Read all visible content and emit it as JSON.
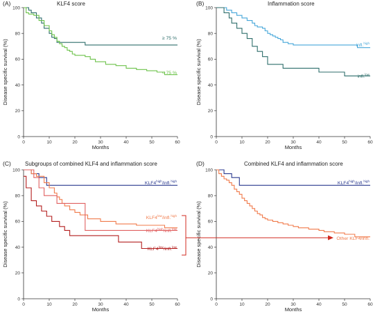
{
  "chart_data": [
    {
      "type": "line",
      "step": true,
      "panel_letter": "(A)",
      "title": "KLF4 score",
      "xlabel": "Months",
      "ylabel": "Disease specific survival (%)",
      "xlim": [
        0,
        60
      ],
      "ylim": [
        0,
        100
      ],
      "xticks": [
        "0",
        "10",
        "20",
        "30",
        "40",
        "50",
        "60"
      ],
      "yticks": [
        "0",
        "20",
        "40",
        "60",
        "80",
        "100"
      ],
      "series": [
        {
          "name": "≥ 75 %",
          "color": "#2e6e6b",
          "x": [
            0,
            2,
            3,
            5,
            7,
            8,
            10,
            11,
            12,
            13,
            24,
            60
          ],
          "y": [
            100,
            98,
            96,
            92,
            88,
            84,
            80,
            77,
            76,
            73,
            71,
            71
          ]
        },
        {
          "name": "< 75 %",
          "color": "#6cc24a",
          "x": [
            0,
            1,
            2,
            4,
            6,
            8,
            10,
            11,
            12,
            13,
            14,
            15,
            16,
            17,
            18,
            19,
            20,
            24,
            26,
            28,
            32,
            36,
            40,
            44,
            48,
            52,
            55,
            60
          ],
          "y": [
            100,
            96,
            95,
            94,
            90,
            86,
            82,
            79,
            77,
            74,
            72,
            70,
            69,
            67,
            66,
            64,
            63,
            62,
            60,
            58,
            56,
            55,
            53,
            52,
            51,
            50,
            48,
            48
          ]
        }
      ]
    },
    {
      "type": "line",
      "step": true,
      "panel_letter": "(B)",
      "title": "Inflammation score",
      "xlabel": "Months",
      "ylabel": "Disease specific survival (%)",
      "xlim": [
        0,
        60
      ],
      "ylim": [
        0,
        100
      ],
      "xticks": [
        "0",
        "10",
        "20",
        "30",
        "40",
        "50",
        "60"
      ],
      "yticks": [
        "0",
        "20",
        "40",
        "60",
        "80",
        "100"
      ],
      "series": [
        {
          "name": "infl.",
          "name_sup": "high",
          "color": "#45a6d9",
          "x": [
            0,
            4,
            6,
            8,
            10,
            12,
            14,
            15,
            16,
            18,
            19,
            20,
            21,
            22,
            23,
            24,
            25,
            26,
            28,
            30,
            55,
            60
          ],
          "y": [
            100,
            98,
            96,
            94,
            92,
            90,
            88,
            86,
            85,
            84,
            82,
            80,
            79,
            78,
            77,
            76,
            75,
            73,
            72,
            71,
            69,
            69
          ]
        },
        {
          "name": "infl.",
          "name_sup": "low",
          "color": "#2e6e6b",
          "x": [
            0,
            3,
            5,
            6,
            8,
            10,
            12,
            14,
            16,
            18,
            20,
            26,
            40,
            50,
            60
          ],
          "y": [
            100,
            96,
            92,
            88,
            84,
            80,
            76,
            70,
            66,
            62,
            56,
            53,
            50,
            47,
            47
          ]
        }
      ]
    },
    {
      "type": "line",
      "step": true,
      "panel_letter": "(C)",
      "title": "Subgroups of combined KLF4 and inflammation score",
      "xlabel": "Months",
      "ylabel": "Disease specific survival (%)",
      "xlim": [
        0,
        60
      ],
      "ylim": [
        0,
        100
      ],
      "xticks": [
        "0",
        "10",
        "20",
        "30",
        "40",
        "50",
        "60"
      ],
      "yticks": [
        "0",
        "20",
        "40",
        "60",
        "80",
        "100"
      ],
      "series": [
        {
          "name": "KLF4",
          "name_sup": "high",
          "name_mid": "/infl.",
          "name_sup2": "high",
          "color": "#2b3a8f",
          "x": [
            0,
            3,
            6,
            9,
            60
          ],
          "y": [
            100,
            97,
            94,
            88,
            88
          ]
        },
        {
          "name": "KLF4",
          "name_sup": "low",
          "name_mid": "/infl.",
          "name_sup2": "high",
          "color": "#f07a4a",
          "x": [
            0,
            3,
            5,
            8,
            10,
            12,
            13,
            14,
            15,
            16,
            18,
            20,
            22,
            25,
            30,
            36,
            44,
            55,
            60
          ],
          "y": [
            100,
            97,
            95,
            90,
            86,
            82,
            79,
            77,
            74,
            72,
            69,
            67,
            65,
            62,
            60,
            58,
            57,
            55,
            55
          ]
        },
        {
          "name": "KLF4",
          "name_sup": "high",
          "name_mid": "/infl.",
          "name_sup2": "low",
          "color": "#e06060",
          "x": [
            0,
            4,
            6,
            8,
            13,
            24,
            55,
            60
          ],
          "y": [
            100,
            94,
            86,
            80,
            74,
            53,
            53,
            53
          ]
        },
        {
          "name": "KLF4",
          "name_sup": "low",
          "name_mid": "/infl.",
          "name_sup2": "low",
          "color": "#b31d1d",
          "x": [
            0,
            1,
            3,
            5,
            7,
            9,
            11,
            14,
            16,
            18,
            37,
            46,
            60
          ],
          "y": [
            95,
            86,
            76,
            72,
            68,
            64,
            60,
            56,
            53,
            49,
            44,
            39,
            39
          ]
        }
      ]
    },
    {
      "type": "line",
      "step": true,
      "panel_letter": "(D)",
      "title": "Combined KLF4 and inflammation score",
      "xlabel": "Months",
      "ylabel": "Disease specific survival (%)",
      "xlim": [
        0,
        60
      ],
      "ylim": [
        0,
        100
      ],
      "xticks": [
        "0",
        "10",
        "20",
        "30",
        "40",
        "50",
        "60"
      ],
      "yticks": [
        "0",
        "20",
        "40",
        "60",
        "80",
        "100"
      ],
      "series": [
        {
          "name": "KLF4",
          "name_sup": "high",
          "name_mid": "/infl.",
          "name_sup2": "high",
          "color": "#2b3a8f",
          "x": [
            0,
            3,
            6,
            9,
            60
          ],
          "y": [
            100,
            97,
            94,
            88,
            88
          ]
        },
        {
          "name": "Other KLF4/infl.",
          "color": "#f07a4a",
          "x": [
            0,
            1,
            2,
            3,
            4,
            5,
            6,
            7,
            8,
            9,
            10,
            11,
            12,
            13,
            14,
            15,
            16,
            17,
            18,
            19,
            20,
            22,
            24,
            26,
            28,
            30,
            32,
            34,
            36,
            38,
            40,
            42,
            44,
            46,
            50,
            54,
            60
          ],
          "y": [
            100,
            97,
            95,
            93,
            92,
            90,
            88,
            85,
            83,
            81,
            78,
            76,
            74,
            72,
            70,
            68,
            66,
            65,
            63,
            62,
            61,
            60,
            59,
            58,
            57,
            56,
            55,
            55,
            54,
            54,
            53,
            52,
            52,
            51,
            50,
            48,
            48
          ]
        }
      ]
    }
  ]
}
